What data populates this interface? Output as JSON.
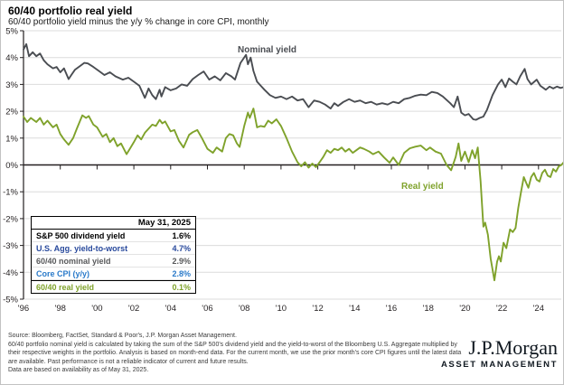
{
  "header": {
    "title": "60/40 portfolio real yield",
    "subtitle": "60/40 portfolio yield minus the y/y % change in core CPI, monthly"
  },
  "colors": {
    "nominal_line": "#4a4d52",
    "real_line": "#7fa22b",
    "navy_text": "#28499c",
    "blue_text": "#2a7ac9",
    "gray_text": "#58595b",
    "grid": "#dcdcdc",
    "axis": "#231f20"
  },
  "chart_data": {
    "type": "line",
    "title": "60/40 portfolio real yield",
    "xlabel": "",
    "ylabel": "",
    "ylim": [
      -5,
      5
    ],
    "grid": true,
    "yticks": [
      5,
      4,
      3,
      2,
      1,
      0,
      -1,
      -2,
      -3,
      -4,
      -5
    ],
    "ytick_suffix": "%",
    "xticks": [
      {
        "label": "'96",
        "year": 1996
      },
      {
        "label": "'98",
        "year": 1998
      },
      {
        "label": "'00",
        "year": 2000
      },
      {
        "label": "'02",
        "year": 2002
      },
      {
        "label": "'04",
        "year": 2004
      },
      {
        "label": "'06",
        "year": 2006
      },
      {
        "label": "'08",
        "year": 2008
      },
      {
        "label": "'10",
        "year": 2010
      },
      {
        "label": "'12",
        "year": 2012
      },
      {
        "label": "'14",
        "year": 2014
      },
      {
        "label": "'16",
        "year": 2016
      },
      {
        "label": "'18",
        "year": 2018
      },
      {
        "label": "'20",
        "year": 2020
      },
      {
        "label": "'22",
        "year": 2022
      },
      {
        "label": "'24",
        "year": 2024
      }
    ],
    "x_range": [
      1996.0,
      2025.42
    ],
    "series": [
      {
        "name": "Nominal yield",
        "color": "#4a4d52",
        "points": [
          [
            1996.0,
            4.3
          ],
          [
            1996.15,
            4.5
          ],
          [
            1996.3,
            4.05
          ],
          [
            1996.5,
            4.2
          ],
          [
            1996.7,
            4.05
          ],
          [
            1996.9,
            4.15
          ],
          [
            1997.1,
            3.9
          ],
          [
            1997.3,
            3.75
          ],
          [
            1997.6,
            3.6
          ],
          [
            1997.8,
            3.65
          ],
          [
            1998.0,
            3.45
          ],
          [
            1998.2,
            3.6
          ],
          [
            1998.45,
            3.2
          ],
          [
            1998.6,
            3.35
          ],
          [
            1998.8,
            3.55
          ],
          [
            1999.0,
            3.65
          ],
          [
            1999.3,
            3.8
          ],
          [
            1999.5,
            3.78
          ],
          [
            1999.8,
            3.65
          ],
          [
            2000.1,
            3.5
          ],
          [
            2000.4,
            3.35
          ],
          [
            2000.7,
            3.45
          ],
          [
            2001.0,
            3.3
          ],
          [
            2001.4,
            3.18
          ],
          [
            2001.7,
            3.25
          ],
          [
            2002.0,
            3.1
          ],
          [
            2002.3,
            2.95
          ],
          [
            2002.6,
            2.5
          ],
          [
            2002.8,
            2.85
          ],
          [
            2003.0,
            2.6
          ],
          [
            2003.2,
            2.45
          ],
          [
            2003.4,
            2.8
          ],
          [
            2003.5,
            2.55
          ],
          [
            2003.7,
            2.9
          ],
          [
            2004.0,
            2.78
          ],
          [
            2004.3,
            2.85
          ],
          [
            2004.6,
            3.0
          ],
          [
            2004.9,
            2.95
          ],
          [
            2005.2,
            3.2
          ],
          [
            2005.5,
            3.35
          ],
          [
            2005.8,
            3.48
          ],
          [
            2006.1,
            3.18
          ],
          [
            2006.4,
            3.3
          ],
          [
            2006.7,
            3.15
          ],
          [
            2007.0,
            3.42
          ],
          [
            2007.3,
            3.3
          ],
          [
            2007.5,
            3.18
          ],
          [
            2007.8,
            3.8
          ],
          [
            2008.1,
            4.1
          ],
          [
            2008.2,
            3.75
          ],
          [
            2008.35,
            4.0
          ],
          [
            2008.5,
            3.5
          ],
          [
            2008.7,
            3.1
          ],
          [
            2008.9,
            2.95
          ],
          [
            2009.1,
            2.8
          ],
          [
            2009.4,
            2.6
          ],
          [
            2009.7,
            2.5
          ],
          [
            2010.0,
            2.55
          ],
          [
            2010.3,
            2.45
          ],
          [
            2010.6,
            2.55
          ],
          [
            2010.9,
            2.4
          ],
          [
            2011.2,
            2.45
          ],
          [
            2011.5,
            2.15
          ],
          [
            2011.8,
            2.4
          ],
          [
            2012.1,
            2.35
          ],
          [
            2012.4,
            2.25
          ],
          [
            2012.7,
            2.1
          ],
          [
            2012.9,
            2.3
          ],
          [
            2013.1,
            2.2
          ],
          [
            2013.4,
            2.35
          ],
          [
            2013.7,
            2.45
          ],
          [
            2014.0,
            2.35
          ],
          [
            2014.3,
            2.4
          ],
          [
            2014.6,
            2.3
          ],
          [
            2014.9,
            2.35
          ],
          [
            2015.2,
            2.25
          ],
          [
            2015.5,
            2.3
          ],
          [
            2015.8,
            2.25
          ],
          [
            2016.1,
            2.35
          ],
          [
            2016.4,
            2.3
          ],
          [
            2016.7,
            2.45
          ],
          [
            2017.0,
            2.5
          ],
          [
            2017.3,
            2.58
          ],
          [
            2017.6,
            2.62
          ],
          [
            2017.9,
            2.6
          ],
          [
            2018.2,
            2.72
          ],
          [
            2018.5,
            2.68
          ],
          [
            2018.8,
            2.55
          ],
          [
            2019.0,
            2.42
          ],
          [
            2019.2,
            2.3
          ],
          [
            2019.4,
            2.15
          ],
          [
            2019.6,
            2.55
          ],
          [
            2019.8,
            1.95
          ],
          [
            2020.0,
            1.85
          ],
          [
            2020.2,
            1.9
          ],
          [
            2020.45,
            1.7
          ],
          [
            2020.6,
            1.68
          ],
          [
            2020.8,
            1.75
          ],
          [
            2021.0,
            1.8
          ],
          [
            2021.2,
            2.05
          ],
          [
            2021.5,
            2.6
          ],
          [
            2021.8,
            3.0
          ],
          [
            2022.0,
            3.18
          ],
          [
            2022.2,
            2.9
          ],
          [
            2022.4,
            3.22
          ],
          [
            2022.6,
            3.1
          ],
          [
            2022.8,
            3.0
          ],
          [
            2023.0,
            3.3
          ],
          [
            2023.25,
            3.58
          ],
          [
            2023.4,
            3.2
          ],
          [
            2023.6,
            3.0
          ],
          [
            2023.9,
            3.18
          ],
          [
            2024.1,
            2.95
          ],
          [
            2024.4,
            2.8
          ],
          [
            2024.6,
            2.92
          ],
          [
            2024.8,
            2.85
          ],
          [
            2025.0,
            2.92
          ],
          [
            2025.2,
            2.87
          ],
          [
            2025.37,
            2.9
          ]
        ]
      },
      {
        "name": "Real yield",
        "color": "#7fa22b",
        "points": [
          [
            1996.0,
            1.8
          ],
          [
            1996.2,
            1.6
          ],
          [
            1996.4,
            1.75
          ],
          [
            1996.7,
            1.6
          ],
          [
            1996.9,
            1.75
          ],
          [
            1997.1,
            1.5
          ],
          [
            1997.3,
            1.65
          ],
          [
            1997.6,
            1.4
          ],
          [
            1997.8,
            1.5
          ],
          [
            1998.0,
            1.15
          ],
          [
            1998.2,
            0.95
          ],
          [
            1998.45,
            0.75
          ],
          [
            1998.7,
            1.0
          ],
          [
            1998.9,
            1.35
          ],
          [
            1999.2,
            1.85
          ],
          [
            1999.4,
            1.75
          ],
          [
            1999.55,
            1.82
          ],
          [
            1999.8,
            1.5
          ],
          [
            2000.0,
            1.4
          ],
          [
            2000.3,
            1.05
          ],
          [
            2000.5,
            1.15
          ],
          [
            2000.7,
            0.85
          ],
          [
            2000.9,
            1.0
          ],
          [
            2001.1,
            0.7
          ],
          [
            2001.3,
            0.8
          ],
          [
            2001.6,
            0.4
          ],
          [
            2001.8,
            0.62
          ],
          [
            2002.0,
            0.85
          ],
          [
            2002.2,
            1.1
          ],
          [
            2002.4,
            0.95
          ],
          [
            2002.6,
            1.2
          ],
          [
            2002.8,
            1.35
          ],
          [
            2003.0,
            1.5
          ],
          [
            2003.2,
            1.45
          ],
          [
            2003.4,
            1.68
          ],
          [
            2003.55,
            1.55
          ],
          [
            2003.7,
            1.62
          ],
          [
            2004.0,
            1.25
          ],
          [
            2004.2,
            1.3
          ],
          [
            2004.45,
            0.9
          ],
          [
            2004.7,
            0.65
          ],
          [
            2005.0,
            1.12
          ],
          [
            2005.2,
            1.22
          ],
          [
            2005.45,
            1.3
          ],
          [
            2005.7,
            1.0
          ],
          [
            2006.0,
            0.6
          ],
          [
            2006.3,
            0.45
          ],
          [
            2006.5,
            0.65
          ],
          [
            2006.8,
            0.5
          ],
          [
            2007.0,
            1.0
          ],
          [
            2007.2,
            1.15
          ],
          [
            2007.4,
            1.1
          ],
          [
            2007.6,
            0.8
          ],
          [
            2007.75,
            0.67
          ],
          [
            2008.0,
            1.45
          ],
          [
            2008.2,
            1.95
          ],
          [
            2008.3,
            1.75
          ],
          [
            2008.5,
            2.1
          ],
          [
            2008.7,
            1.4
          ],
          [
            2008.9,
            1.45
          ],
          [
            2009.1,
            1.42
          ],
          [
            2009.3,
            1.65
          ],
          [
            2009.5,
            1.55
          ],
          [
            2009.75,
            1.7
          ],
          [
            2010.0,
            1.45
          ],
          [
            2010.3,
            1.0
          ],
          [
            2010.6,
            0.5
          ],
          [
            2010.9,
            0.1
          ],
          [
            2011.1,
            -0.05
          ],
          [
            2011.3,
            0.1
          ],
          [
            2011.5,
            -0.1
          ],
          [
            2011.7,
            0.05
          ],
          [
            2011.9,
            -0.08
          ],
          [
            2012.1,
            0.1
          ],
          [
            2012.3,
            0.3
          ],
          [
            2012.5,
            0.55
          ],
          [
            2012.7,
            0.45
          ],
          [
            2012.9,
            0.6
          ],
          [
            2013.1,
            0.55
          ],
          [
            2013.3,
            0.65
          ],
          [
            2013.5,
            0.5
          ],
          [
            2013.7,
            0.6
          ],
          [
            2013.9,
            0.45
          ],
          [
            2014.1,
            0.55
          ],
          [
            2014.3,
            0.65
          ],
          [
            2014.5,
            0.6
          ],
          [
            2014.8,
            0.5
          ],
          [
            2015.0,
            0.4
          ],
          [
            2015.3,
            0.5
          ],
          [
            2015.6,
            0.28
          ],
          [
            2015.9,
            0.08
          ],
          [
            2016.1,
            0.28
          ],
          [
            2016.4,
            0.0
          ],
          [
            2016.7,
            0.45
          ],
          [
            2017.0,
            0.62
          ],
          [
            2017.3,
            0.68
          ],
          [
            2017.6,
            0.72
          ],
          [
            2017.9,
            0.55
          ],
          [
            2018.1,
            0.65
          ],
          [
            2018.4,
            0.5
          ],
          [
            2018.7,
            0.42
          ],
          [
            2019.0,
            0.0
          ],
          [
            2019.25,
            -0.2
          ],
          [
            2019.5,
            0.3
          ],
          [
            2019.65,
            0.8
          ],
          [
            2019.8,
            0.15
          ],
          [
            2020.0,
            0.5
          ],
          [
            2020.2,
            0.1
          ],
          [
            2020.4,
            0.55
          ],
          [
            2020.55,
            0.25
          ],
          [
            2020.7,
            0.65
          ],
          [
            2020.85,
            -0.6
          ],
          [
            2021.0,
            -2.3
          ],
          [
            2021.1,
            -2.15
          ],
          [
            2021.25,
            -2.6
          ],
          [
            2021.4,
            -3.5
          ],
          [
            2021.6,
            -4.3
          ],
          [
            2021.75,
            -3.6
          ],
          [
            2021.85,
            -3.4
          ],
          [
            2021.95,
            -3.6
          ],
          [
            2022.1,
            -2.9
          ],
          [
            2022.25,
            -3.1
          ],
          [
            2022.45,
            -2.4
          ],
          [
            2022.6,
            -2.5
          ],
          [
            2022.75,
            -2.35
          ],
          [
            2022.9,
            -1.6
          ],
          [
            2023.05,
            -1.0
          ],
          [
            2023.2,
            -0.45
          ],
          [
            2023.35,
            -0.7
          ],
          [
            2023.45,
            -0.85
          ],
          [
            2023.6,
            -0.45
          ],
          [
            2023.75,
            -0.3
          ],
          [
            2023.9,
            -0.55
          ],
          [
            2024.05,
            -0.62
          ],
          [
            2024.2,
            -0.3
          ],
          [
            2024.35,
            -0.18
          ],
          [
            2024.5,
            -0.4
          ],
          [
            2024.65,
            -0.45
          ],
          [
            2024.8,
            -0.15
          ],
          [
            2024.95,
            -0.25
          ],
          [
            2025.1,
            -0.05
          ],
          [
            2025.25,
            0.0
          ],
          [
            2025.37,
            0.1
          ]
        ]
      }
    ],
    "annotations": [
      {
        "text": "Nominal yield",
        "color": "#4a4d52"
      },
      {
        "text": "Real yield",
        "color": "#7fa22b"
      }
    ],
    "legend_position": "inline-labels"
  },
  "table": {
    "date_header": "May 31, 2025",
    "rows": [
      {
        "label": "S&P 500 dividend yield",
        "value": "1.6%"
      },
      {
        "label": "U.S. Agg. yield-to-worst",
        "value": "4.7%"
      },
      {
        "label": "60/40 nominal yield",
        "value": "2.9%"
      },
      {
        "label": "Core CPI (y/y)",
        "value": "2.8%"
      },
      {
        "label": "60/40 real yield",
        "value": "0.1%"
      }
    ]
  },
  "footer": {
    "source": "Source: Bloomberg, FactSet, Standard & Poor's, J.P. Morgan Asset Management.",
    "methodology": "60/40 portfolio nominal yield is calculated by taking the sum of the S&P 500's dividend yield and the yield-to-worst of the Bloomberg U.S. Aggregate multiplied by their respective weights in the portfolio. Analysis is based on month-end data. For the current month, we use the prior month's core CPI figures until the latest data are available. Past performance is not a reliable indicator of current and future results.",
    "availability": "Data are based on availability as of May 31, 2025."
  },
  "logo": {
    "brand": "J.P.Morgan",
    "division": "ASSET MANAGEMENT"
  }
}
